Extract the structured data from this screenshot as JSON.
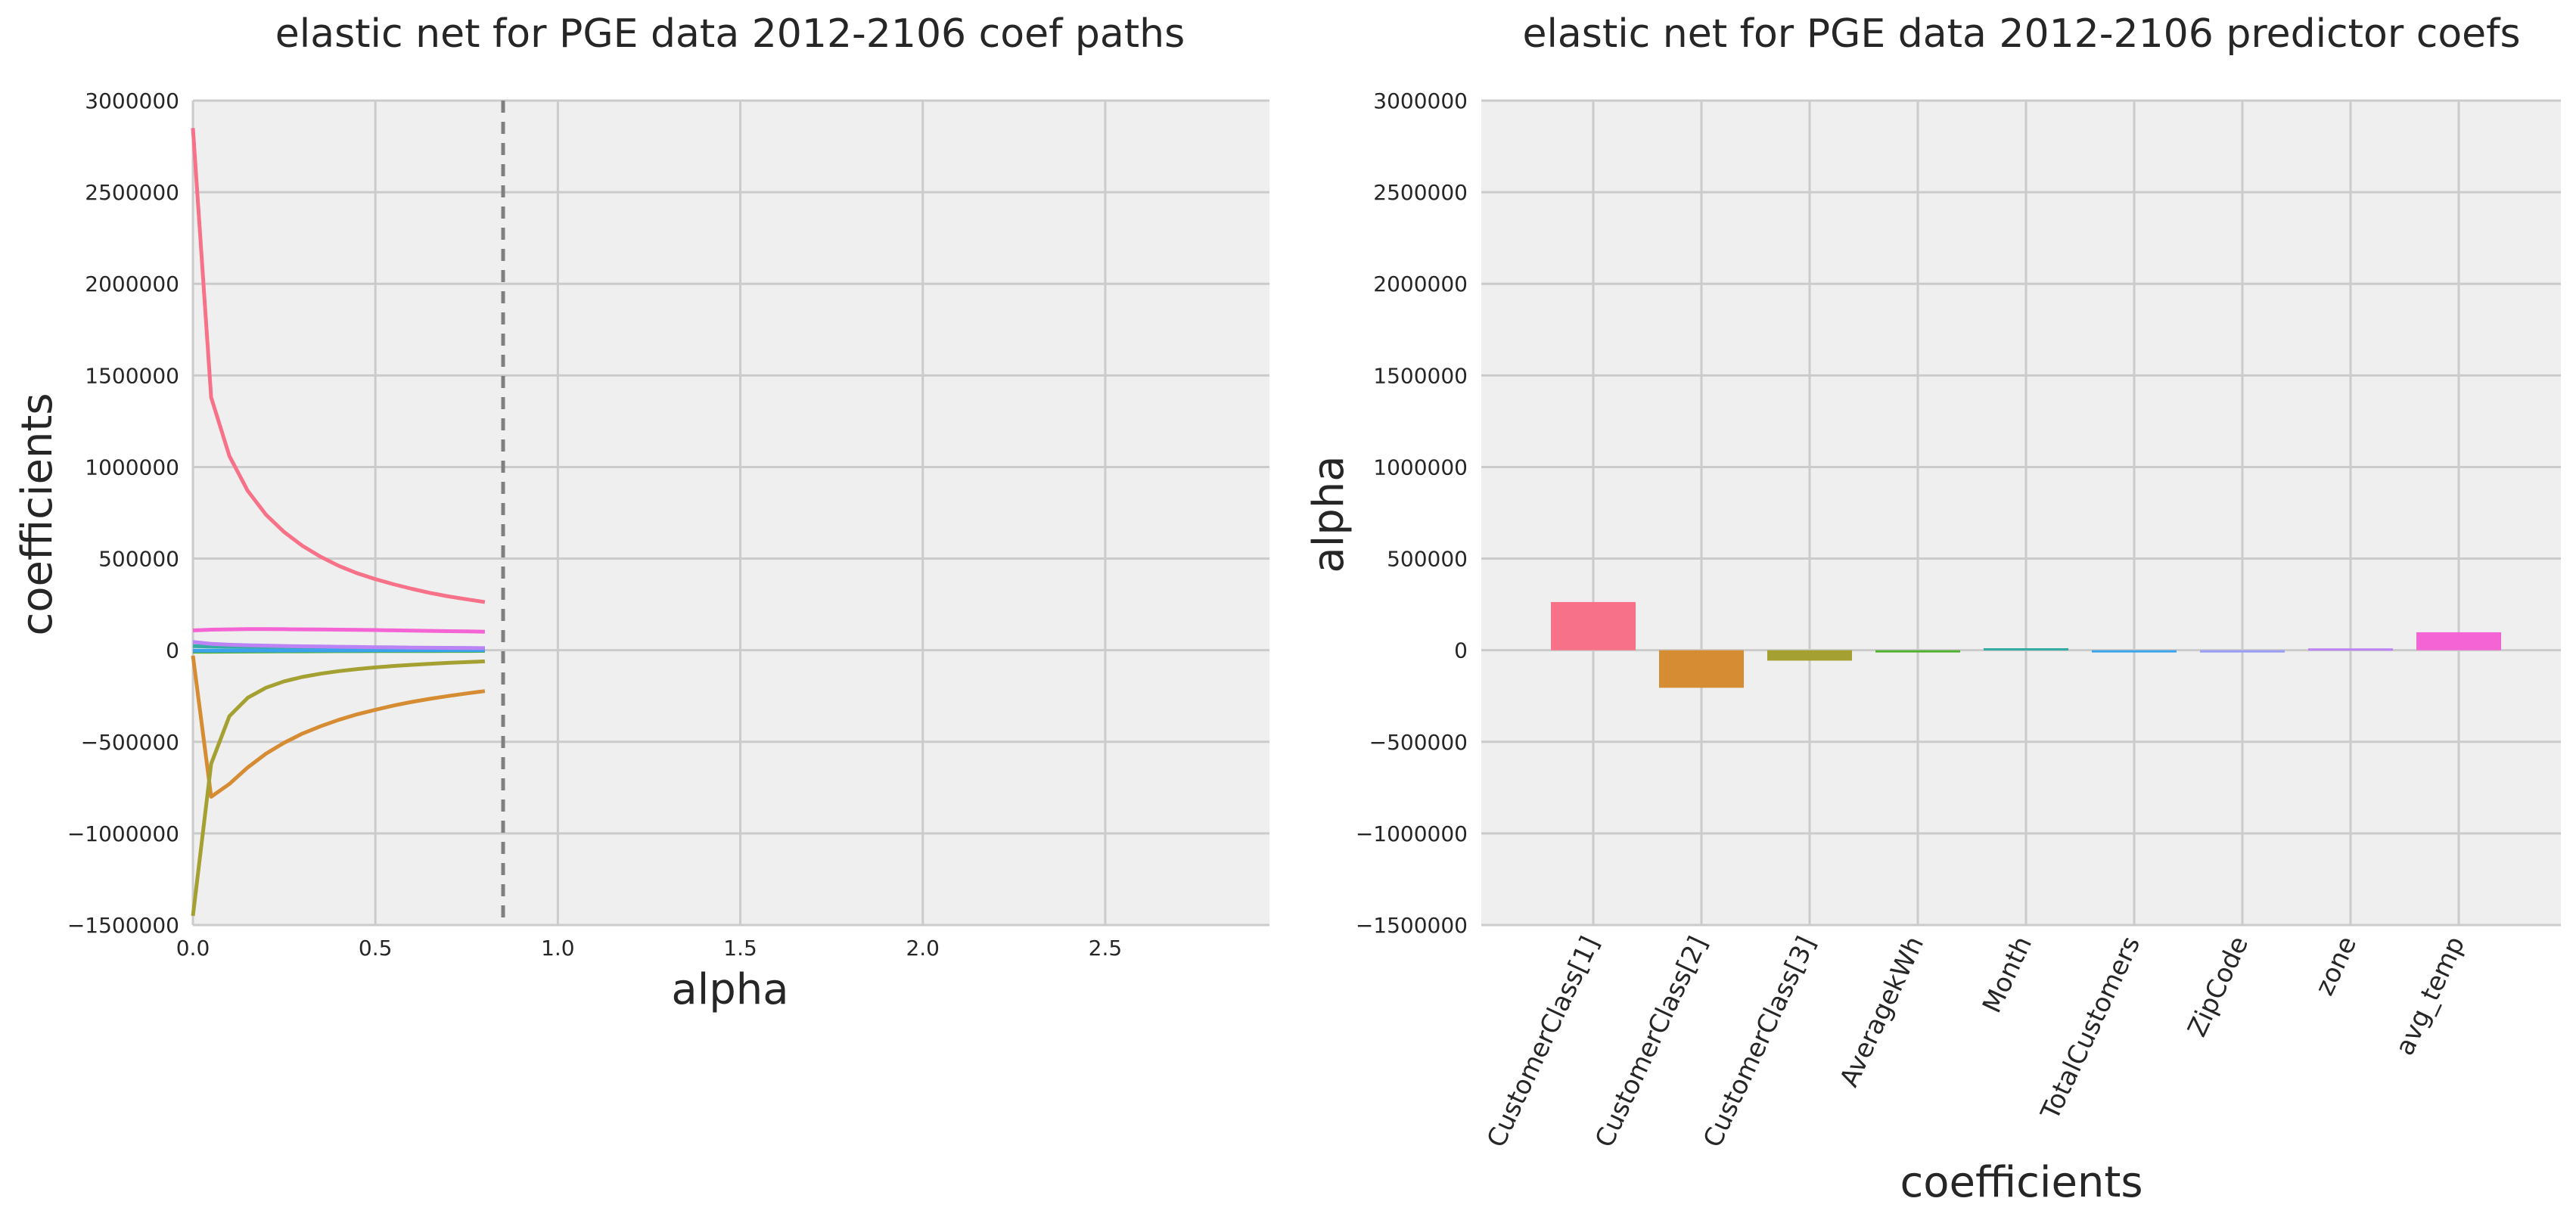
{
  "chart_data": [
    {
      "type": "line",
      "title": "elastic net for PGE data 2012-2106 coef paths",
      "xlabel": "alpha",
      "ylabel": "coefficients",
      "xlim": [
        0,
        2.95
      ],
      "ylim": [
        -1500000,
        3000000
      ],
      "x_ticks": [
        0.0,
        0.5,
        1.0,
        1.5,
        2.0,
        2.5
      ],
      "x_tick_labels": [
        "0.0",
        "0.5",
        "1.0",
        "1.5",
        "2.0",
        "2.5"
      ],
      "y_ticks": [
        -1500000,
        -1000000,
        -500000,
        0,
        500000,
        1000000,
        1500000,
        2000000,
        2500000,
        3000000
      ],
      "y_tick_labels": [
        "−1500000",
        "−1000000",
        "−500000",
        "0",
        "500000",
        "1000000",
        "1500000",
        "2000000",
        "2500000",
        "3000000"
      ],
      "grid": true,
      "vline": {
        "x": 0.85,
        "style": "dashed",
        "color": "#808080"
      },
      "x": [
        0.0,
        0.05,
        0.1,
        0.15,
        0.2,
        0.25,
        0.3,
        0.35,
        0.4,
        0.45,
        0.5,
        0.55,
        0.6,
        0.65,
        0.7,
        0.75,
        0.8
      ],
      "series": [
        {
          "color": "#f77189",
          "values": [
            2850000,
            1380000,
            1060000,
            870000,
            740000,
            645000,
            570000,
            510000,
            460000,
            420000,
            388000,
            360000,
            335000,
            313000,
            294000,
            278000,
            263000
          ]
        },
        {
          "color": "#d58c32",
          "values": [
            -30000,
            -800000,
            -730000,
            -640000,
            -565000,
            -505000,
            -455000,
            -415000,
            -380000,
            -350000,
            -325000,
            -302000,
            -282000,
            -265000,
            -250000,
            -236000,
            -223000
          ]
        },
        {
          "color": "#a4a031",
          "values": [
            -1450000,
            -620000,
            -360000,
            -260000,
            -205000,
            -170000,
            -146000,
            -128000,
            -114000,
            -103000,
            -94000,
            -86000,
            -80000,
            -74000,
            -69000,
            -65000,
            -61000
          ]
        },
        {
          "color": "#50b131",
          "values": [
            -8000,
            -8000,
            -7500,
            -7000,
            -6500,
            -6000,
            -5800,
            -5500,
            -5200,
            -5000,
            -4800,
            -4600,
            -4400,
            -4200,
            -4000,
            -3800,
            -3600
          ]
        },
        {
          "color": "#36ada4",
          "values": [
            22000,
            20000,
            19000,
            18000,
            17000,
            16500,
            16000,
            15500,
            15000,
            14500,
            14000,
            13500,
            13000,
            12500,
            12000,
            11500,
            11000
          ]
        },
        {
          "color": "#3ba3ec",
          "values": [
            -2000,
            -2000,
            -2000,
            -1800,
            -1700,
            -1600,
            -1500,
            -1400,
            -1300,
            -1200,
            -1100,
            -1000,
            -900,
            -800,
            -700,
            -600,
            -500
          ]
        },
        {
          "color": "#bb83f4",
          "values": [
            45000,
            35000,
            30000,
            27000,
            25000,
            23000,
            21500,
            20000,
            18800,
            17600,
            16500,
            15500,
            14500,
            13600,
            12800,
            12000,
            11300
          ]
        },
        {
          "color": "#f564d4",
          "values": [
            108000,
            112000,
            114000,
            115000,
            115000,
            114500,
            114000,
            113000,
            112000,
            111000,
            110000,
            108500,
            107000,
            105500,
            104000,
            102500,
            101000
          ]
        }
      ]
    },
    {
      "type": "bar",
      "title": "elastic net for PGE data 2012-2106 predictor coefs",
      "xlabel": "coefficients",
      "ylabel": "alpha",
      "ylim": [
        -1500000,
        3000000
      ],
      "y_ticks": [
        -1500000,
        -1000000,
        -500000,
        0,
        500000,
        1000000,
        1500000,
        2000000,
        2500000,
        3000000
      ],
      "y_tick_labels": [
        "−1500000",
        "−1000000",
        "−500000",
        "0",
        "500000",
        "1000000",
        "1500000",
        "2000000",
        "2500000",
        "3000000"
      ],
      "grid": true,
      "categories": [
        "CustomerClass[1]",
        "CustomerClass[2]",
        "CustomerClass[3]",
        "AveragekWh",
        "Month",
        "TotalCustomers",
        "ZipCode",
        "zone",
        "avg_temp"
      ],
      "values": [
        263000,
        -205000,
        -57000,
        -3000,
        11000,
        -500,
        -2000,
        10000,
        98000
      ],
      "colors": [
        "#f77189",
        "#d58c32",
        "#a4a031",
        "#50b131",
        "#36ada4",
        "#3ba3ec",
        "#9a9cf4",
        "#bb83f4",
        "#f564d4"
      ]
    }
  ]
}
